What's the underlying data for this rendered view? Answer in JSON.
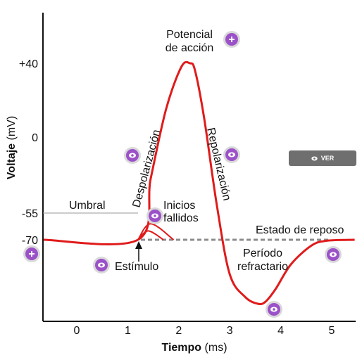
{
  "chart_data": {
    "type": "line",
    "title": "",
    "xlabel_bold": "Tiempo",
    "xlabel_unit": "(ms)",
    "ylabel_bold": "Voltaje",
    "ylabel_unit": "(mV)",
    "x_ticks": [
      "0",
      "1",
      "2",
      "3",
      "4",
      "5"
    ],
    "y_ticks": [
      "+40",
      "0",
      "-55",
      "-70"
    ],
    "xlim": [
      -0.65,
      5.45
    ],
    "series": [
      {
        "x": [
          -0.65,
          1.2,
          1.45,
          1.75,
          2.05,
          2.22,
          2.32,
          2.5,
          2.75,
          3.0,
          3.3,
          3.55,
          3.7,
          3.9,
          4.2,
          4.6,
          4.9,
          5.45
        ],
        "y": [
          -70,
          -70,
          -30,
          15,
          38,
          40,
          36,
          10,
          -50,
          -105,
          -128,
          -135,
          -133,
          -120,
          -95,
          -76,
          -71,
          -70
        ]
      }
    ],
    "failed_initiations": [
      {
        "x": [
          1.2,
          1.45,
          1.9
        ],
        "y": [
          -70,
          -61,
          -70
        ]
      },
      {
        "x": [
          1.2,
          1.4,
          1.7
        ],
        "y": [
          -70,
          -65,
          -70
        ]
      }
    ],
    "threshold": {
      "label": "Umbral",
      "y": -55
    },
    "resting": {
      "label": "Estado de reposo",
      "y": -70
    }
  },
  "annotations": {
    "action_potential_line1": "Potencial",
    "action_potential_line2": "de acción",
    "depolarization": "Despolarización",
    "repolarization": "Repolarización",
    "failed_line1": "Inicios",
    "failed_line2": "fallidos",
    "stimulus": "Estímulo",
    "refractory_line1": "Período",
    "refractory_line2": "refractario"
  },
  "controls": {
    "ver_label": "VER"
  },
  "colors": {
    "curve": "#e01b1b",
    "resting_dash": "#8c8c8c",
    "hotspot_fill": "#9b51c8",
    "hotspot_ring": "#d9d9d9",
    "button_bg": "#6f6f6f"
  }
}
